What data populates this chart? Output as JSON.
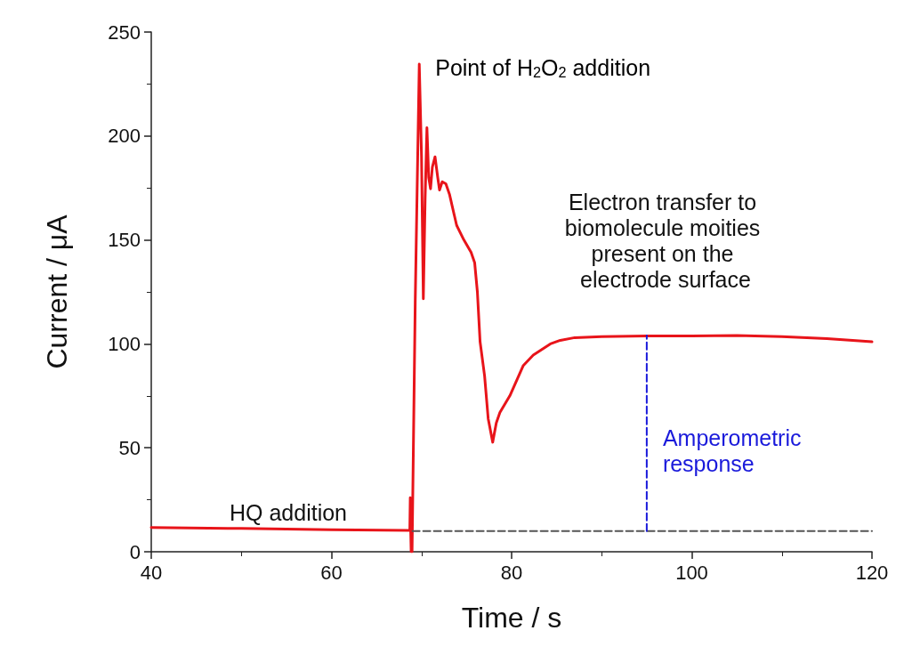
{
  "chart_data": {
    "type": "line",
    "xlabel": "Time / s",
    "ylabel": "Current / μA",
    "xlim": [
      40,
      120
    ],
    "xticks": [
      40,
      60,
      80,
      100,
      120
    ],
    "ylim": [
      0,
      250
    ],
    "yticks": [
      0,
      50,
      100,
      150,
      200,
      250
    ],
    "grid": false,
    "legend": false,
    "marker": "none",
    "series": [
      {
        "color": "#e8141a",
        "line_style": "solid",
        "x": [
          40,
          50,
          60,
          68.5,
          68.7,
          68.75,
          68.8,
          68.85,
          68.95,
          69.3,
          69.75,
          70.0,
          70.2,
          70.4,
          70.6,
          70.8,
          71.0,
          71.2,
          71.5,
          71.8,
          72.0,
          72.3,
          72.7,
          73.1,
          73.9,
          74.7,
          75.5,
          75.9,
          76.2,
          76.5,
          77.0,
          77.4,
          77.9,
          78.3,
          78.7,
          79.8,
          81.3,
          82.4,
          84.3,
          85.4,
          87,
          90,
          95,
          100,
          105,
          110,
          115,
          120
        ],
        "values": [
          11.7,
          11.2,
          10.6,
          10.3,
          10.3,
          26,
          10,
          0,
          0,
          120,
          234.6,
          190,
          121.7,
          170,
          204,
          180,
          174.6,
          185,
          190,
          180,
          174,
          178,
          177,
          172,
          157,
          150,
          144,
          139,
          125,
          101,
          84.6,
          64,
          52.7,
          62,
          67,
          75,
          89.6,
          94.6,
          100,
          101.7,
          103,
          103.5,
          103.8,
          103.8,
          104,
          103.5,
          102.5,
          101
        ]
      },
      {
        "color": "#555555",
        "line_style": "dashed",
        "x": [
          69,
          120
        ],
        "values": [
          10,
          10
        ]
      },
      {
        "name": "Amperometric response",
        "color": "#1a1adb",
        "line_style": "dashed",
        "x": [
          95,
          95
        ],
        "values": [
          10,
          104
        ]
      }
    ],
    "annotations": [
      {
        "text": "Point of H$_{2}$O$_{2}$ addition",
        "x": 69.75,
        "y": 234.6
      },
      "HQ addition",
      "Electron transfer to biomolecule moities present on the electrode surface"
    ]
  }
}
